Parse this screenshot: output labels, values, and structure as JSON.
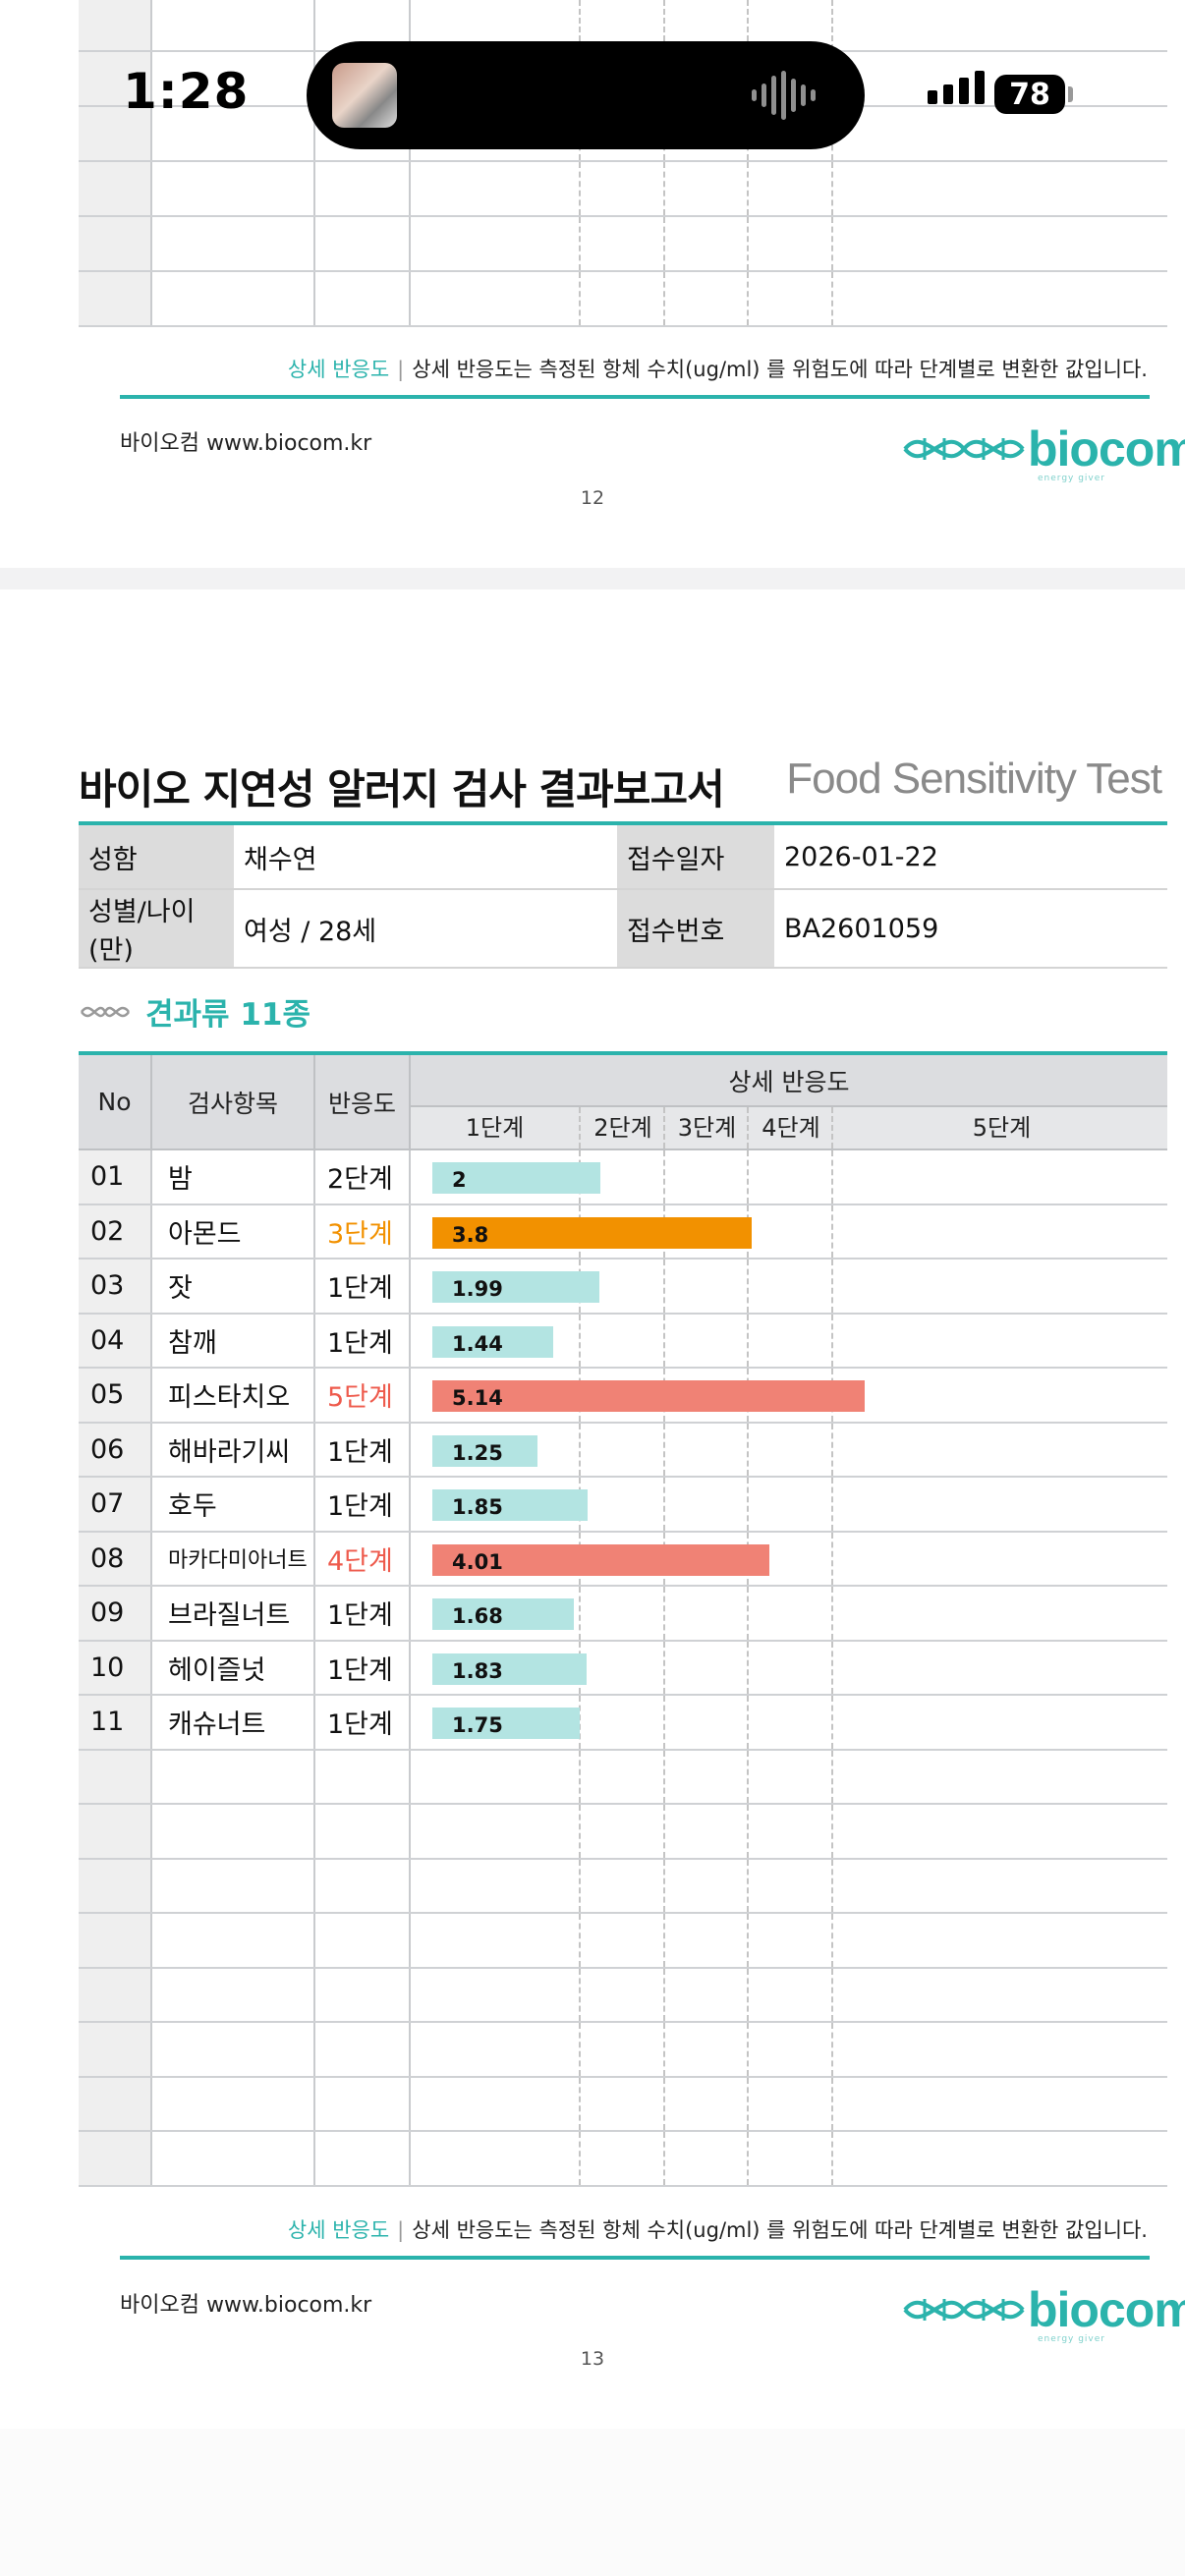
{
  "status_bar": {
    "time": "1:28",
    "battery": "78"
  },
  "footer": {
    "note_key": "상세 반응도",
    "note_text": "상세 반응도는 측정된 항체 수치(ug/ml) 를 위험도에 따라 단계별로 변환한 값입니다.",
    "company": "바이오컴  www.biocom.kr",
    "logo_text": "biocom",
    "logo_sub": "energy giver"
  },
  "page12": {
    "page_number": "12"
  },
  "page13": {
    "page_number": "13",
    "title": "바이오 지연성 알러지 검사 결과보고서",
    "title_en": "Food Sensitivity Test",
    "info": {
      "name_label": "성함",
      "name": "채수연",
      "date_label": "접수일자",
      "date": "2026-01-22",
      "sex_age_label": "성별/나이(만)",
      "sex_age": "여성 / 28세",
      "id_label": "접수번호",
      "id": "BA2601059"
    },
    "section_title": "견과류 11종",
    "table_headers": {
      "no": "No",
      "item": "검사항목",
      "level": "반응도",
      "detail": "상세 반응도",
      "stages": [
        "1단계",
        "2단계",
        "3단계",
        "4단계",
        "5단계"
      ]
    }
  },
  "colors": {
    "accent": "#2bb3ac",
    "stage1": "#b3e4e2",
    "stage3": "#f29100",
    "stage4": "#f08275",
    "stage5": "#f08275",
    "level3_text": "#f29100",
    "level45_text": "#ee5a4c"
  },
  "chart_data": {
    "type": "bar",
    "title": "견과류 11종",
    "x_axis_levels": [
      "1단계",
      "2단계",
      "3단계",
      "4단계",
      "5단계"
    ],
    "xlim": [
      0,
      5.5
    ],
    "categories": [
      "밤",
      "아몬드",
      "잣",
      "참깨",
      "피스타치오",
      "해바라기씨",
      "호두",
      "마카다미아너트",
      "브라질너트",
      "헤이즐넛",
      "캐슈너트"
    ],
    "rows": [
      {
        "no": "01",
        "item": "밤",
        "level": "2단계",
        "value": 2
      },
      {
        "no": "02",
        "item": "아몬드",
        "level": "3단계",
        "value": 3.8
      },
      {
        "no": "03",
        "item": "잣",
        "level": "1단계",
        "value": 1.99
      },
      {
        "no": "04",
        "item": "참깨",
        "level": "1단계",
        "value": 1.44
      },
      {
        "no": "05",
        "item": "피스타치오",
        "level": "5단계",
        "value": 5.14
      },
      {
        "no": "06",
        "item": "해바라기씨",
        "level": "1단계",
        "value": 1.25
      },
      {
        "no": "07",
        "item": "호두",
        "level": "1단계",
        "value": 1.85
      },
      {
        "no": "08",
        "item": "마카다미아너트",
        "level": "4단계",
        "value": 4.01
      },
      {
        "no": "09",
        "item": "브라질너트",
        "level": "1단계",
        "value": 1.68
      },
      {
        "no": "10",
        "item": "헤이즐넛",
        "level": "1단계",
        "value": 1.83
      },
      {
        "no": "11",
        "item": "캐슈너트",
        "level": "1단계",
        "value": 1.75
      }
    ]
  }
}
